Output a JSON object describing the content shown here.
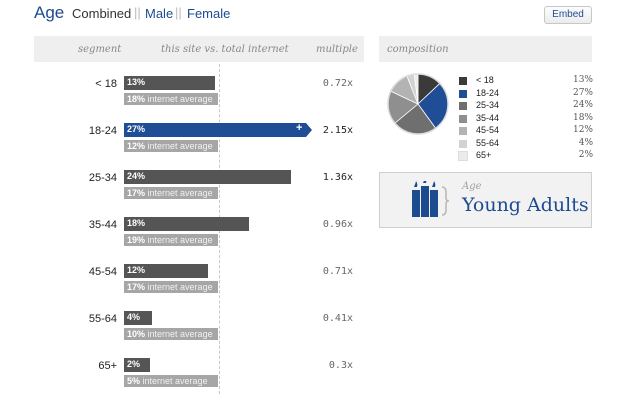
{
  "header": {
    "title": "Age",
    "tabs": [
      {
        "label": "Combined",
        "active": true
      },
      {
        "label": "Male",
        "active": false
      },
      {
        "label": "Female",
        "active": false
      }
    ],
    "separator": "||",
    "embed_label": "Embed"
  },
  "table": {
    "columns": {
      "segment": "segment",
      "comparison": "this site vs. total internet",
      "multiple": "multiple"
    },
    "internet_average_label": "internet average",
    "rows": [
      {
        "segment": "< 18",
        "site_pct": 13,
        "site_label": "13%",
        "avg_pct": 18,
        "avg_label": "18%",
        "multiple": "0.72x"
      },
      {
        "segment": "18-24",
        "site_pct": 27,
        "site_label": "27%",
        "avg_pct": 12,
        "avg_label": "12%",
        "multiple": "2.15x"
      },
      {
        "segment": "25-34",
        "site_pct": 24,
        "site_label": "24%",
        "avg_pct": 17,
        "avg_label": "17%",
        "multiple": "1.36x"
      },
      {
        "segment": "35-44",
        "site_pct": 18,
        "site_label": "18%",
        "avg_pct": 19,
        "avg_label": "19%",
        "multiple": "0.96x"
      },
      {
        "segment": "45-54",
        "site_pct": 12,
        "site_label": "12%",
        "avg_pct": 17,
        "avg_label": "17%",
        "multiple": "0.71x"
      },
      {
        "segment": "55-64",
        "site_pct": 4,
        "site_label": "4%",
        "avg_pct": 10,
        "avg_label": "10%",
        "multiple": "0.41x"
      },
      {
        "segment": "65+",
        "site_pct": 2,
        "site_label": "2%",
        "avg_pct": 5,
        "avg_label": "5%",
        "multiple": "0.3x"
      }
    ],
    "highlight_segment": "18-24",
    "highlight_symbol": "+",
    "colors": {
      "site_bar": "#555555",
      "highlight_bar": "#1f4e96",
      "avg_bar": "#a6a6a6"
    }
  },
  "composition": {
    "title": "composition",
    "legend": [
      {
        "label": "< 18",
        "value": "13%",
        "pct": 13,
        "color": "#3a3a3a"
      },
      {
        "label": "18-24",
        "value": "27%",
        "pct": 27,
        "color": "#1f4e96"
      },
      {
        "label": "25-34",
        "value": "24%",
        "pct": 24,
        "color": "#6f6f6f"
      },
      {
        "label": "35-44",
        "value": "18%",
        "pct": 18,
        "color": "#8f8f8f"
      },
      {
        "label": "45-54",
        "value": "12%",
        "pct": 12,
        "color": "#b3b3b3"
      },
      {
        "label": "55-64",
        "value": "4%",
        "pct": 4,
        "color": "#d2d2d2"
      },
      {
        "label": "65+",
        "value": "2%",
        "pct": 2,
        "color": "#ebebeb"
      }
    ],
    "persona": {
      "category": "Age",
      "name": "Young Adults",
      "icon": "candles-icon"
    }
  }
}
